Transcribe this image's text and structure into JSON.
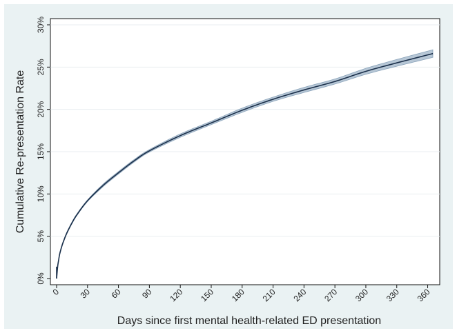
{
  "chart_data": {
    "type": "line",
    "title": "",
    "xlabel": "Days since first mental health-related ED presentation",
    "ylabel": "Cumulative Re-presentation Rate",
    "xlim": [
      0,
      365
    ],
    "ylim": [
      0,
      30
    ],
    "x_ticks": [
      0,
      30,
      60,
      90,
      120,
      150,
      180,
      210,
      240,
      270,
      300,
      330,
      360
    ],
    "x_tick_labels": [
      "0",
      "30",
      "60",
      "90",
      "120",
      "150",
      "180",
      "210",
      "240",
      "270",
      "300",
      "330",
      "360"
    ],
    "y_ticks": [
      0,
      5,
      10,
      15,
      20,
      25,
      30
    ],
    "y_tick_labels": [
      "0%",
      "5%",
      "10%",
      "15%",
      "20%",
      "25%",
      "30%"
    ],
    "grid": true,
    "legend": "none",
    "colors": {
      "line": "#1a2f4a",
      "ci_band": "#9fb4c8",
      "background": "#eaf2f3",
      "grid": "#e9eef0"
    },
    "series": [
      {
        "x": [
          0,
          1,
          2,
          3,
          5,
          7,
          10,
          15,
          20,
          30,
          45,
          60,
          75,
          90,
          120,
          150,
          180,
          210,
          240,
          270,
          300,
          330,
          365
        ],
        "y": [
          0,
          1.4,
          2.2,
          2.9,
          3.8,
          4.5,
          5.4,
          6.6,
          7.6,
          9.2,
          11.0,
          12.5,
          13.9,
          15.1,
          16.9,
          18.4,
          19.9,
          21.2,
          22.3,
          23.3,
          24.5,
          25.5,
          26.6
        ],
        "ci_lower": [
          0,
          1.3,
          2.1,
          2.8,
          3.7,
          4.4,
          5.3,
          6.5,
          7.5,
          9.1,
          10.85,
          12.35,
          13.75,
          14.95,
          16.7,
          18.2,
          19.65,
          20.95,
          22.0,
          23.0,
          24.15,
          25.1,
          26.15
        ],
        "ci_upper": [
          0,
          1.5,
          2.3,
          3.0,
          3.9,
          4.6,
          5.5,
          6.7,
          7.7,
          9.3,
          11.15,
          12.65,
          14.05,
          15.25,
          17.1,
          18.6,
          20.15,
          21.45,
          22.6,
          23.6,
          24.85,
          25.9,
          27.05
        ]
      }
    ]
  }
}
